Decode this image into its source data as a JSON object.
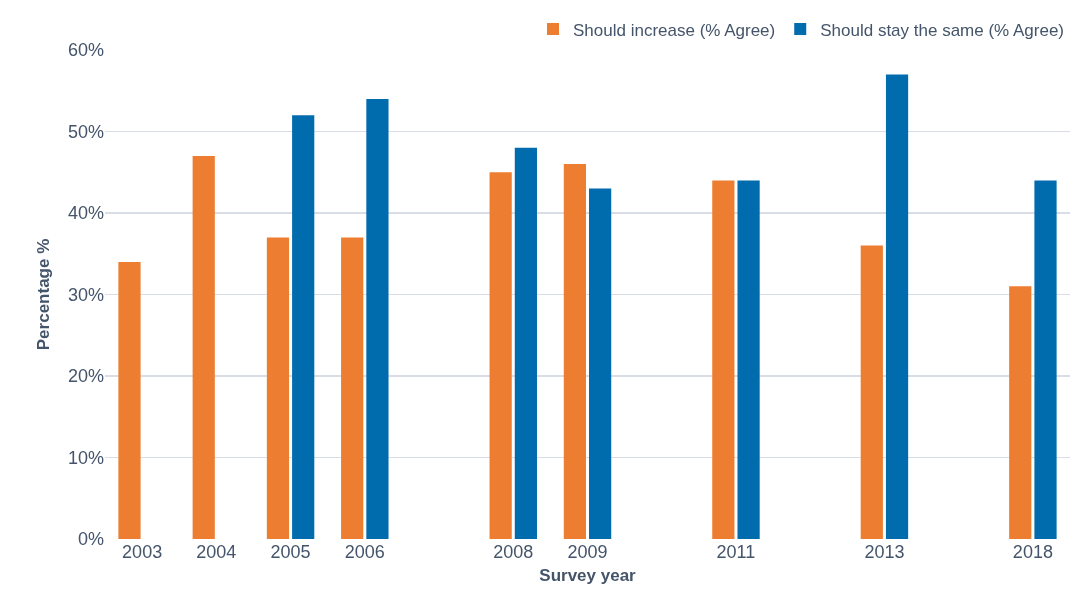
{
  "chart_data": {
    "type": "bar",
    "categories": [
      "2003",
      "2004",
      "2005",
      "2006",
      null,
      "2008",
      "2009",
      null,
      "2011",
      null,
      "2013",
      null,
      "2018"
    ],
    "series": [
      {
        "name": "Should increase (% Agree)",
        "color": "#ed7d31",
        "values": [
          34,
          47,
          37,
          37,
          null,
          45,
          46,
          null,
          44,
          null,
          36,
          null,
          31
        ]
      },
      {
        "name": "Should stay the same (% Agree)",
        "color": "#006bad",
        "values": [
          null,
          null,
          52,
          54,
          null,
          48,
          43,
          null,
          44,
          null,
          57,
          null,
          44
        ]
      }
    ],
    "xlabel": "Survey year",
    "ylabel": "Percentage %",
    "ylim": [
      0,
      60
    ],
    "yticks": [
      {
        "value": 0,
        "label": "0%"
      },
      {
        "value": 10,
        "label": "10%"
      },
      {
        "value": 20,
        "label": "20%"
      },
      {
        "value": 30,
        "label": "30%"
      },
      {
        "value": 40,
        "label": "40%"
      },
      {
        "value": 50,
        "label": "50%"
      },
      {
        "value": 60,
        "label": "60%"
      }
    ],
    "grid": "y",
    "legend": "top right"
  }
}
